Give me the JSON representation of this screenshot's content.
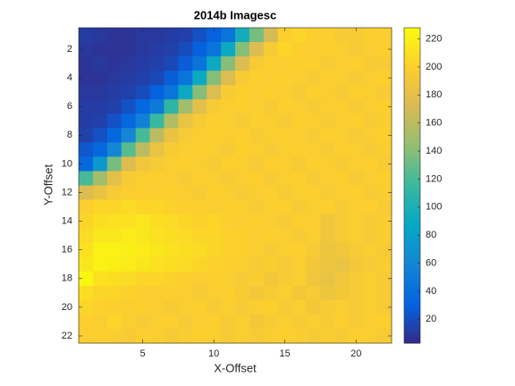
{
  "chart_data": {
    "type": "heatmap",
    "title": "2014b Imagesc",
    "x_label": "X-Offset",
    "y_label": "Y-Offset",
    "colormap": "parula",
    "x": [
      1,
      2,
      3,
      4,
      5,
      6,
      7,
      8,
      9,
      10,
      11,
      12,
      13,
      14,
      15,
      16,
      17,
      18,
      19,
      20,
      21,
      22
    ],
    "y": [
      1,
      2,
      3,
      4,
      5,
      6,
      7,
      8,
      9,
      10,
      11,
      12,
      13,
      14,
      15,
      16,
      17,
      18,
      19,
      20,
      21,
      22
    ],
    "xlim": [
      0.5,
      22.5
    ],
    "ylim": [
      22.5,
      0.5
    ],
    "xticks": [
      5,
      10,
      15,
      20
    ],
    "yticks": [
      2,
      4,
      6,
      8,
      10,
      12,
      14,
      16,
      18,
      20,
      22
    ],
    "clim": [
      3,
      228
    ],
    "cticks": [
      20,
      40,
      60,
      80,
      100,
      120,
      140,
      160,
      180,
      200,
      220
    ],
    "z": [
      [
        12,
        10,
        8,
        8,
        10,
        10,
        12,
        14,
        22,
        30,
        45,
        95,
        135,
        170,
        200,
        205,
        200,
        200,
        195,
        195,
        200,
        198
      ],
      [
        10,
        8,
        8,
        8,
        10,
        12,
        14,
        20,
        30,
        45,
        90,
        140,
        175,
        195,
        205,
        200,
        198,
        200,
        198,
        195,
        198,
        200
      ],
      [
        8,
        10,
        8,
        10,
        12,
        14,
        18,
        28,
        45,
        90,
        140,
        175,
        195,
        200,
        198,
        200,
        200,
        195,
        198,
        200,
        195,
        195
      ],
      [
        8,
        8,
        10,
        12,
        14,
        18,
        28,
        45,
        90,
        140,
        175,
        195,
        200,
        198,
        200,
        198,
        195,
        200,
        198,
        195,
        198,
        200
      ],
      [
        10,
        10,
        12,
        14,
        20,
        30,
        45,
        90,
        140,
        175,
        195,
        200,
        198,
        200,
        198,
        195,
        200,
        198,
        195,
        200,
        198,
        195
      ],
      [
        12,
        12,
        14,
        22,
        35,
        50,
        110,
        150,
        180,
        195,
        198,
        200,
        198,
        195,
        200,
        198,
        195,
        198,
        200,
        195,
        198,
        200
      ],
      [
        12,
        14,
        22,
        35,
        55,
        115,
        155,
        185,
        195,
        200,
        198,
        195,
        200,
        198,
        195,
        200,
        198,
        195,
        198,
        200,
        195,
        198
      ],
      [
        14,
        22,
        35,
        60,
        120,
        160,
        185,
        195,
        198,
        200,
        198,
        200,
        195,
        198,
        200,
        198,
        195,
        200,
        198,
        195,
        198,
        200
      ],
      [
        25,
        35,
        60,
        125,
        160,
        185,
        195,
        198,
        200,
        198,
        195,
        200,
        198,
        195,
        198,
        200,
        198,
        195,
        200,
        198,
        195,
        198
      ],
      [
        35,
        75,
        135,
        175,
        190,
        195,
        198,
        200,
        198,
        195,
        200,
        198,
        195,
        200,
        198,
        195,
        200,
        198,
        195,
        198,
        200,
        195
      ],
      [
        120,
        150,
        180,
        195,
        198,
        200,
        198,
        195,
        200,
        198,
        195,
        198,
        200,
        195,
        198,
        200,
        195,
        198,
        200,
        195,
        198,
        200
      ],
      [
        175,
        185,
        195,
        198,
        200,
        198,
        200,
        198,
        195,
        200,
        198,
        195,
        198,
        200,
        195,
        198,
        200,
        195,
        198,
        200,
        195,
        198
      ],
      [
        200,
        205,
        205,
        208,
        205,
        205,
        202,
        200,
        200,
        198,
        200,
        198,
        195,
        198,
        200,
        195,
        198,
        200,
        195,
        198,
        200,
        195
      ],
      [
        205,
        210,
        212,
        212,
        215,
        210,
        208,
        205,
        202,
        205,
        200,
        198,
        200,
        198,
        195,
        200,
        198,
        190,
        195,
        198,
        195,
        198
      ],
      [
        208,
        215,
        215,
        218,
        215,
        212,
        210,
        208,
        205,
        205,
        202,
        200,
        198,
        200,
        198,
        195,
        198,
        190,
        195,
        198,
        195,
        198
      ],
      [
        212,
        222,
        222,
        220,
        218,
        215,
        212,
        210,
        208,
        205,
        202,
        200,
        198,
        195,
        198,
        200,
        195,
        188,
        190,
        195,
        198,
        195
      ],
      [
        215,
        222,
        220,
        218,
        215,
        212,
        210,
        208,
        205,
        202,
        200,
        198,
        195,
        198,
        195,
        198,
        192,
        188,
        185,
        192,
        195,
        198
      ],
      [
        225,
        212,
        210,
        208,
        205,
        205,
        202,
        200,
        198,
        200,
        198,
        195,
        198,
        192,
        195,
        198,
        190,
        185,
        190,
        195,
        198,
        195
      ],
      [
        210,
        205,
        205,
        202,
        200,
        198,
        200,
        198,
        195,
        198,
        200,
        195,
        192,
        195,
        198,
        192,
        195,
        188,
        192,
        195,
        198,
        195
      ],
      [
        205,
        202,
        200,
        198,
        200,
        198,
        195,
        198,
        200,
        195,
        198,
        195,
        198,
        200,
        195,
        198,
        192,
        195,
        198,
        195,
        198,
        195
      ],
      [
        200,
        198,
        205,
        198,
        195,
        198,
        200,
        195,
        198,
        200,
        195,
        198,
        192,
        195,
        198,
        195,
        198,
        195,
        200,
        195,
        198,
        200
      ],
      [
        198,
        200,
        198,
        195,
        200,
        198,
        195,
        198,
        200,
        198,
        195,
        198,
        195,
        198,
        200,
        198,
        195,
        198,
        195,
        200,
        198,
        195
      ]
    ]
  }
}
